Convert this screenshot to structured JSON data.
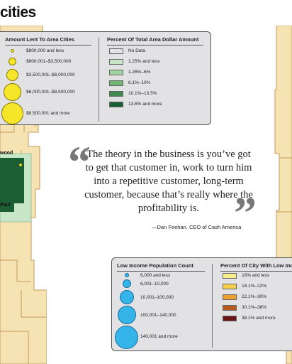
{
  "page": {
    "title": "cities"
  },
  "map": {
    "labels": [
      {
        "id": "label-wood",
        "text": "wood"
      },
      {
        "id": "label-paul",
        "text": "Paul"
      }
    ],
    "colors": {
      "base": "#f6e3b4",
      "boundary": "#c79a5a",
      "pale_green": "#c8e6c8",
      "dark_green": "#1c5e34",
      "lender_dot": "#f5e62a"
    }
  },
  "legend_amount": {
    "circle_title": "Amount Lent To Area Cities",
    "circle_items": [
      {
        "label": "$800,000 and less"
      },
      {
        "label": "$800,001–$3,500,000"
      },
      {
        "label": "$3,500,001–$6,000,000"
      },
      {
        "label": "$6,000,001–$8,500,000"
      },
      {
        "label": "$8,500,001 and more"
      }
    ],
    "circle_color": "#f5e62a",
    "color_title": "Percent Of Total Area Dollar Amount",
    "color_items": [
      {
        "label": "No Data",
        "color": "#f4f4f4",
        "hatched": true
      },
      {
        "label": "1.25% and less",
        "color": "#c8e6c8"
      },
      {
        "label": "1.26%–6%",
        "color": "#9fd49f"
      },
      {
        "label": "6.1%–10%",
        "color": "#6fb56f"
      },
      {
        "label": "10.1%–13.5%",
        "color": "#3f8a4f"
      },
      {
        "label": "13.6% and more",
        "color": "#1c5e34"
      }
    ]
  },
  "quote": {
    "text": "The theory in the business is you’ve got to get that customer in, work to turn him into a repetitive customer, long-term customer, because that’s really where the profitability is.",
    "open_mark": "“",
    "close_mark": "”",
    "attribution": "—Dan Feehan, CEO of Cash America"
  },
  "legend_income": {
    "circle_title": "Low Income Population Count",
    "circle_items": [
      {
        "label": "6,000 and less"
      },
      {
        "label": "6,001–10,000"
      },
      {
        "label": "10,001–100,000"
      },
      {
        "label": "100,001–140,000"
      },
      {
        "label": "140,001 and more"
      }
    ],
    "circle_color": "#35b4ea",
    "color_title": "Percent Of City With Low Inc",
    "color_items": [
      {
        "label": "18% and less",
        "color": "#f7ef8a"
      },
      {
        "label": "18.1%–22%",
        "color": "#f6cf4a"
      },
      {
        "label": "22.1%–30%",
        "color": "#eea02a"
      },
      {
        "label": "30.1%–38%",
        "color": "#b85a1e"
      },
      {
        "label": "38.1% and more",
        "color": "#6a1414"
      }
    ]
  }
}
